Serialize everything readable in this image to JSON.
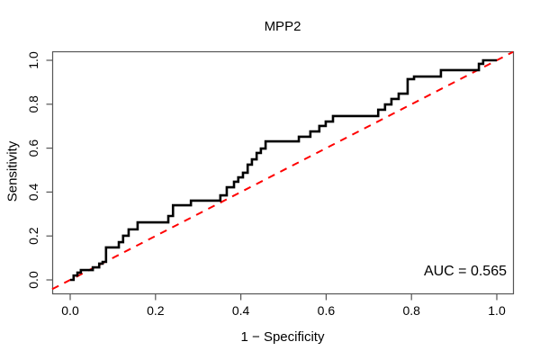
{
  "chart_data": {
    "type": "line",
    "subtype": "roc_step_curve",
    "title": "MPP2",
    "xlabel": "1 − Specificity",
    "ylabel": "Sensitivity",
    "xlim": [
      0.0,
      1.0
    ],
    "ylim": [
      0.0,
      1.0
    ],
    "x_ticks": [
      "0.0",
      "0.2",
      "0.4",
      "0.6",
      "0.8",
      "1.0"
    ],
    "y_ticks": [
      "0.0",
      "0.2",
      "0.4",
      "0.6",
      "0.8",
      "1.0"
    ],
    "grid": false,
    "legend_position": "none",
    "annotation": "AUC = 0.565",
    "auc_value": 0.565,
    "colors": {
      "curve": "#000000",
      "reference_line": "#ff0000",
      "frame": "#555555",
      "text": "#000000",
      "background": "#ffffff"
    },
    "series": [
      {
        "name": "ROC curve",
        "style": "solid-step",
        "line_width": 2.6,
        "step_points": [
          [
            0.0,
            0.0
          ],
          [
            0.008,
            0.02
          ],
          [
            0.017,
            0.033
          ],
          [
            0.025,
            0.045
          ],
          [
            0.053,
            0.057
          ],
          [
            0.068,
            0.074
          ],
          [
            0.076,
            0.082
          ],
          [
            0.084,
            0.148
          ],
          [
            0.114,
            0.172
          ],
          [
            0.124,
            0.201
          ],
          [
            0.137,
            0.23
          ],
          [
            0.158,
            0.262
          ],
          [
            0.23,
            0.291
          ],
          [
            0.241,
            0.34
          ],
          [
            0.283,
            0.361
          ],
          [
            0.352,
            0.385
          ],
          [
            0.367,
            0.422
          ],
          [
            0.384,
            0.447
          ],
          [
            0.394,
            0.467
          ],
          [
            0.405,
            0.488
          ],
          [
            0.416,
            0.525
          ],
          [
            0.426,
            0.549
          ],
          [
            0.437,
            0.578
          ],
          [
            0.447,
            0.598
          ],
          [
            0.458,
            0.631
          ],
          [
            0.536,
            0.652
          ],
          [
            0.563,
            0.676
          ],
          [
            0.584,
            0.701
          ],
          [
            0.599,
            0.721
          ],
          [
            0.616,
            0.746
          ],
          [
            0.722,
            0.775
          ],
          [
            0.738,
            0.799
          ],
          [
            0.753,
            0.824
          ],
          [
            0.77,
            0.848
          ],
          [
            0.791,
            0.914
          ],
          [
            0.806,
            0.926
          ],
          [
            0.869,
            0.955
          ],
          [
            0.958,
            0.984
          ],
          [
            0.968,
            1.0
          ],
          [
            1.0,
            1.0
          ]
        ]
      },
      {
        "name": "chance diagonal",
        "style": "dashed",
        "line_width": 2,
        "from": [
          0.0,
          0.0
        ],
        "to": [
          1.0,
          1.0
        ]
      }
    ]
  }
}
